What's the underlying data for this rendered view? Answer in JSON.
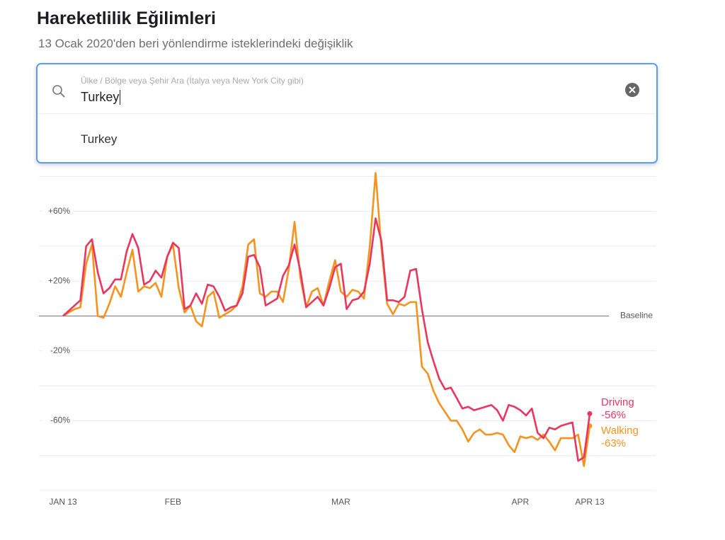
{
  "header": {
    "title": "Hareketlilik Eğilimleri",
    "subtitle": "13 Ocak 2020'den beri yönlendirme isteklerindeki değişiklik"
  },
  "search": {
    "placeholder": "Ülke / Bölge veya Şehir Ara (İtalya veya New York City gibi)",
    "query": "Turkey",
    "suggestions": [
      "Turkey"
    ]
  },
  "chart_data": {
    "type": "line",
    "categories": [
      "JAN 13",
      null,
      null,
      null,
      null,
      null,
      null,
      null,
      null,
      null,
      null,
      null,
      null,
      null,
      null,
      null,
      null,
      null,
      null,
      "FEB",
      null,
      null,
      null,
      null,
      null,
      null,
      null,
      null,
      null,
      null,
      null,
      null,
      null,
      null,
      null,
      null,
      null,
      null,
      null,
      null,
      null,
      null,
      null,
      null,
      null,
      null,
      null,
      null,
      "MAR",
      null,
      null,
      null,
      null,
      null,
      null,
      null,
      null,
      null,
      null,
      null,
      null,
      null,
      null,
      null,
      null,
      null,
      null,
      null,
      null,
      null,
      null,
      null,
      null,
      null,
      null,
      null,
      null,
      null,
      null,
      "APR",
      null,
      null,
      null,
      null,
      null,
      null,
      null,
      null,
      null,
      null,
      null,
      "APR 13"
    ],
    "series": [
      {
        "name": "Driving",
        "color": "#e8365f",
        "end_label": "-56%",
        "values": [
          0,
          3,
          6,
          9,
          40,
          44,
          25,
          13,
          16,
          21,
          21,
          37,
          47,
          39,
          18,
          20,
          26,
          22,
          34,
          42,
          39,
          4,
          6,
          13,
          7,
          18,
          17,
          11,
          3,
          5,
          6,
          13,
          34,
          35,
          28,
          6,
          8,
          10,
          23,
          29,
          41,
          26,
          5,
          8,
          11,
          6,
          16,
          28,
          30,
          4,
          9,
          10,
          14,
          30,
          56,
          43,
          9,
          9,
          8,
          11,
          26,
          27,
          4,
          -15,
          -26,
          -36,
          -42,
          -41,
          -47,
          -53,
          -52,
          -54,
          -53,
          -52,
          -51,
          -54,
          -60,
          -51,
          -52,
          -54,
          -57,
          -53,
          -67,
          -70,
          -64,
          -65,
          -63,
          -62,
          -61,
          -83,
          -81,
          -56
        ]
      },
      {
        "name": "Walking",
        "color": "#f4931f",
        "end_label": "-63%",
        "values": [
          0,
          2,
          4,
          5,
          30,
          41,
          0,
          -1,
          7,
          17,
          11,
          25,
          38,
          14,
          17,
          16,
          19,
          11,
          34,
          41,
          16,
          2,
          6,
          -3,
          -6,
          11,
          14,
          -1,
          1,
          3,
          6,
          17,
          41,
          44,
          13,
          11,
          14,
          14,
          8,
          27,
          54,
          22,
          5,
          14,
          16,
          6,
          20,
          32,
          14,
          11,
          15,
          14,
          10,
          40,
          82,
          39,
          7,
          1,
          7,
          6,
          8,
          8,
          -29,
          -33,
          -43,
          -50,
          -55,
          -60,
          -60,
          -65,
          -72,
          -67,
          -65,
          -68,
          -68,
          -67,
          -68,
          -74,
          -78,
          -69,
          -70,
          -69,
          -71,
          -68,
          -72,
          -77,
          -70,
          -70,
          -70,
          -68,
          -86,
          -63
        ]
      }
    ],
    "ylim": [
      -100,
      85
    ],
    "yticks": [
      {
        "value": 60,
        "label": "+60%"
      },
      {
        "value": 20,
        "label": "+20%"
      },
      {
        "value": -20,
        "label": "-20%"
      },
      {
        "value": -60,
        "label": "-60%"
      }
    ],
    "ygrid": [
      -100,
      -80,
      -60,
      -40,
      -20,
      20,
      40,
      60,
      80
    ],
    "baseline": {
      "value": 0,
      "label": "Baseline"
    }
  }
}
